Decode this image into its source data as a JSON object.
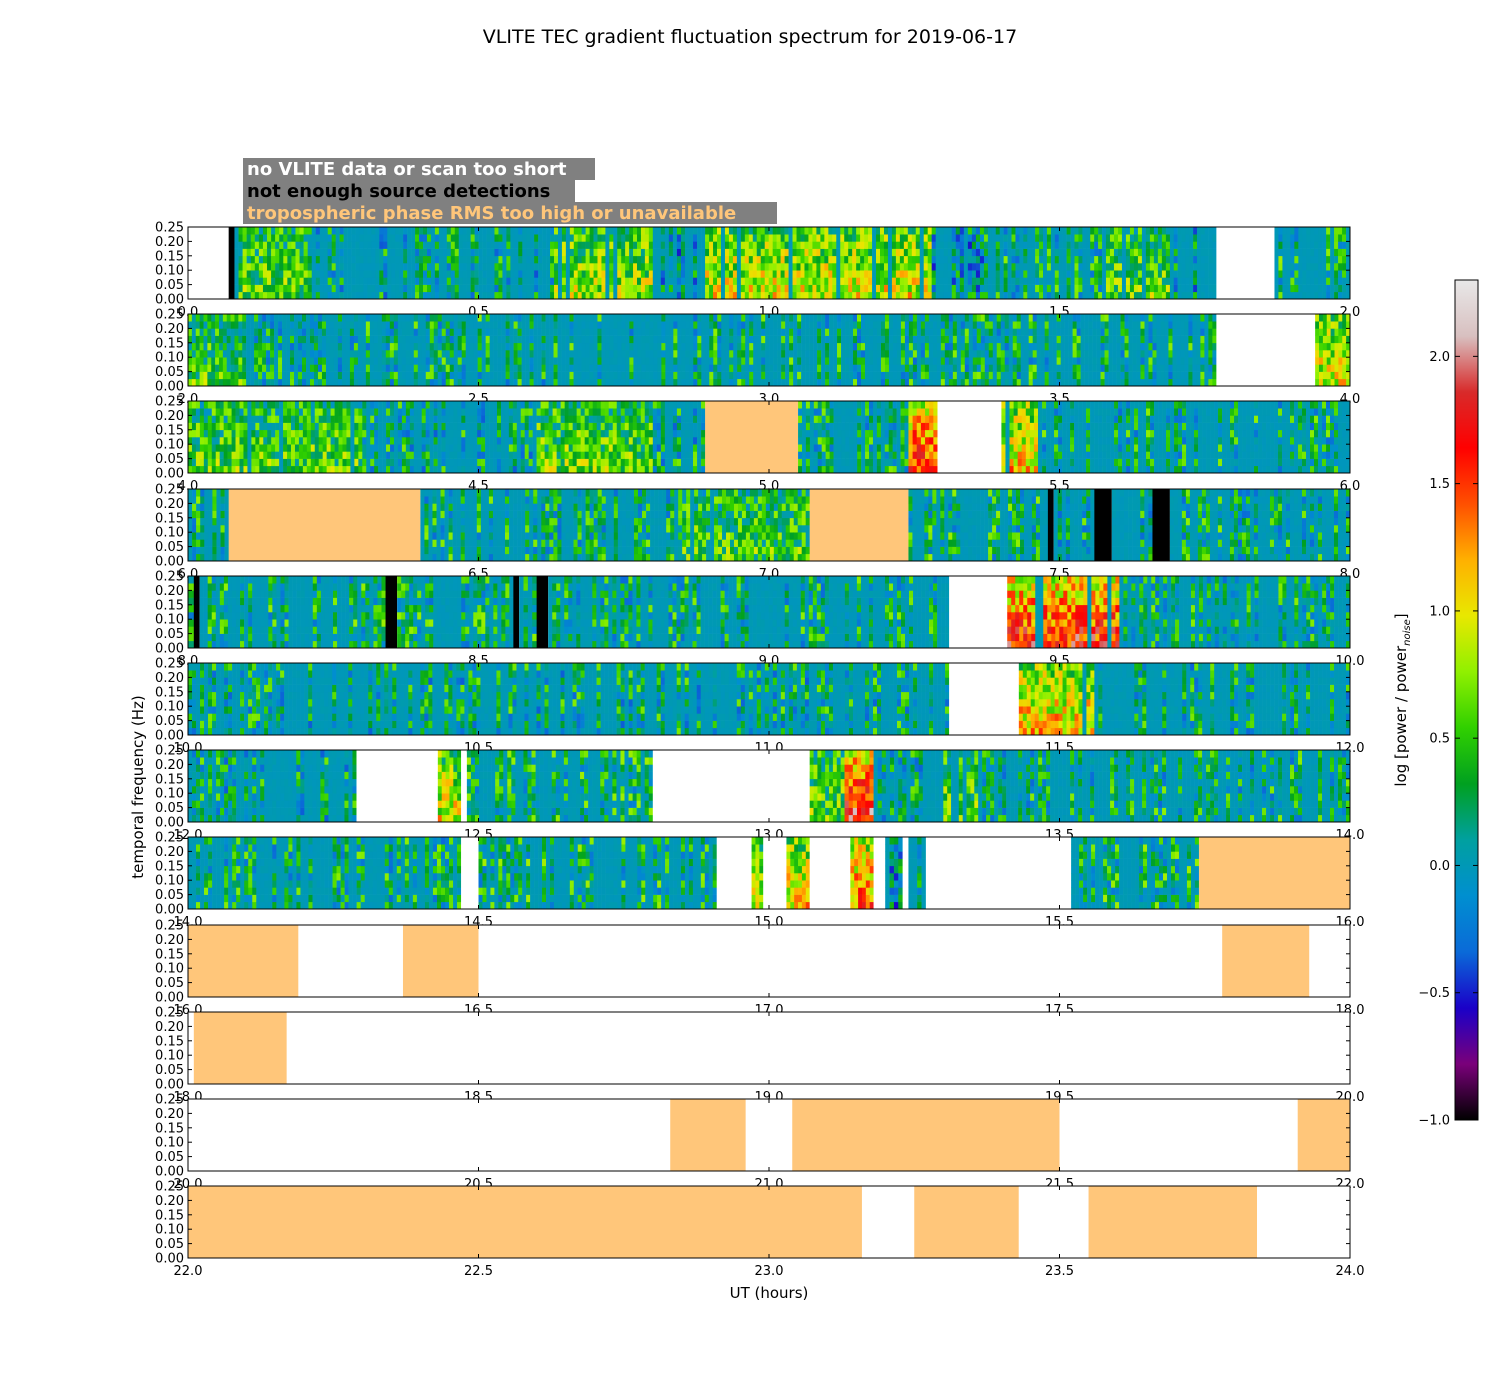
{
  "chart_data": {
    "type": "heatmap",
    "title": "VLITE TEC gradient fluctuation spectrum for 2019-06-17",
    "xlabel": "UT (hours)",
    "ylabel": "temporal frequency (Hz)",
    "ylim": [
      0,
      0.25
    ],
    "y_ticks": [
      "0.00",
      "0.05",
      "0.10",
      "0.15",
      "0.20",
      "0.25"
    ],
    "colorbar": {
      "label": "log [power / power",
      "label_sub": "noise",
      "label_end": "]",
      "range": [
        -1.0,
        2.3
      ],
      "ticks": [
        {
          "value": -1.0,
          "label": "−1.0"
        },
        {
          "value": -0.5,
          "label": "−0.5"
        },
        {
          "value": 0.0,
          "label": "0.0"
        },
        {
          "value": 0.5,
          "label": "0.5"
        },
        {
          "value": 1.0,
          "label": "1.0"
        },
        {
          "value": 1.5,
          "label": "1.5"
        },
        {
          "value": 2.0,
          "label": "2.0"
        }
      ],
      "colors": [
        "#000000",
        "#7a007a",
        "#1a00c8",
        "#0a6ad8",
        "#008fd0",
        "#00a0a0",
        "#00a020",
        "#30d000",
        "#90f000",
        "#e8e800",
        "#ffb000",
        "#ff5000",
        "#ff0000",
        "#d82a2a",
        "#d8c0c0",
        "#e8e8e8"
      ]
    },
    "legend": [
      {
        "label": "no VLITE data or scan too short",
        "color": "#ffffff",
        "category": "nodata"
      },
      {
        "label": "not enough source detections",
        "color": "#000000",
        "category": "detect"
      },
      {
        "label": "tropospheric phase RMS too high or unavailable",
        "color": "#ffc67a",
        "category": "tropo"
      }
    ],
    "legend_box_color": "#808080",
    "panels": [
      {
        "start": 0.0,
        "end": 2.0,
        "x_ticks": [
          "0.0",
          "0.5",
          "1.0",
          "1.5",
          "2.0"
        ],
        "segments": [
          {
            "s": 0.0,
            "e": 0.07,
            "k": "nodata"
          },
          {
            "s": 0.07,
            "e": 0.08,
            "k": "detect"
          },
          {
            "s": 0.08,
            "e": 0.22,
            "k": "active",
            "lvl": 0.55
          },
          {
            "s": 0.22,
            "e": 0.63,
            "k": "quiet",
            "lvl": 0.25
          },
          {
            "s": 0.63,
            "e": 0.8,
            "k": "active",
            "lvl": 0.75
          },
          {
            "s": 0.8,
            "e": 0.89,
            "k": "quiet",
            "lvl": 0.05
          },
          {
            "s": 0.89,
            "e": 1.28,
            "k": "active",
            "lvl": 0.9
          },
          {
            "s": 1.28,
            "e": 1.37,
            "k": "quiet",
            "lvl": 0.05
          },
          {
            "s": 1.37,
            "e": 1.58,
            "k": "quiet",
            "lvl": 0.35
          },
          {
            "s": 1.58,
            "e": 1.69,
            "k": "active",
            "lvl": 0.6
          },
          {
            "s": 1.69,
            "e": 1.77,
            "k": "quiet",
            "lvl": 0.1
          },
          {
            "s": 1.77,
            "e": 1.87,
            "k": "nodata"
          },
          {
            "s": 1.87,
            "e": 2.0,
            "k": "quiet",
            "lvl": 0.45
          }
        ]
      },
      {
        "start": 2.0,
        "end": 4.0,
        "x_ticks": [
          "2.0",
          "2.5",
          "3.0",
          "3.5",
          "4.0"
        ],
        "segments": [
          {
            "s": 2.0,
            "e": 2.1,
            "k": "active",
            "lvl": 0.5
          },
          {
            "s": 2.1,
            "e": 3.77,
            "k": "quiet",
            "lvl": 0.35
          },
          {
            "s": 3.77,
            "e": 3.94,
            "k": "nodata"
          },
          {
            "s": 3.94,
            "e": 4.0,
            "k": "active",
            "lvl": 0.9
          }
        ]
      },
      {
        "start": 4.0,
        "end": 6.0,
        "x_ticks": [
          "4.0",
          "4.5",
          "5.0",
          "5.5",
          "6.0"
        ],
        "segments": [
          {
            "s": 4.0,
            "e": 4.3,
            "k": "active",
            "lvl": 0.55
          },
          {
            "s": 4.3,
            "e": 4.6,
            "k": "quiet",
            "lvl": 0.3
          },
          {
            "s": 4.6,
            "e": 4.8,
            "k": "active",
            "lvl": 0.6
          },
          {
            "s": 4.8,
            "e": 4.89,
            "k": "quiet",
            "lvl": 0.3
          },
          {
            "s": 4.89,
            "e": 5.05,
            "k": "tropo"
          },
          {
            "s": 5.05,
            "e": 5.24,
            "k": "quiet",
            "lvl": 0.35
          },
          {
            "s": 5.24,
            "e": 5.29,
            "k": "active",
            "lvl": 1.6
          },
          {
            "s": 5.29,
            "e": 5.4,
            "k": "nodata"
          },
          {
            "s": 5.4,
            "e": 5.47,
            "k": "active",
            "lvl": 1.1
          },
          {
            "s": 5.47,
            "e": 6.0,
            "k": "quiet",
            "lvl": 0.35
          }
        ]
      },
      {
        "start": 6.0,
        "end": 8.0,
        "x_ticks": [
          "6.0",
          "6.5",
          "7.0",
          "7.5",
          "8.0"
        ],
        "segments": [
          {
            "s": 6.0,
            "e": 6.07,
            "k": "quiet",
            "lvl": 0.4
          },
          {
            "s": 6.07,
            "e": 6.4,
            "k": "tropo"
          },
          {
            "s": 6.4,
            "e": 6.83,
            "k": "quiet",
            "lvl": 0.35
          },
          {
            "s": 6.83,
            "e": 7.07,
            "k": "active",
            "lvl": 0.5
          },
          {
            "s": 7.07,
            "e": 7.24,
            "k": "tropo"
          },
          {
            "s": 7.24,
            "e": 7.48,
            "k": "quiet",
            "lvl": 0.4
          },
          {
            "s": 7.48,
            "e": 7.49,
            "k": "detect"
          },
          {
            "s": 7.49,
            "e": 7.56,
            "k": "quiet",
            "lvl": 0.3
          },
          {
            "s": 7.56,
            "e": 7.59,
            "k": "detect"
          },
          {
            "s": 7.59,
            "e": 7.66,
            "k": "quiet",
            "lvl": 0.3
          },
          {
            "s": 7.66,
            "e": 7.69,
            "k": "detect"
          },
          {
            "s": 7.69,
            "e": 8.0,
            "k": "quiet",
            "lvl": 0.35
          }
        ]
      },
      {
        "start": 8.0,
        "end": 10.0,
        "x_ticks": [
          "8.0",
          "8.5",
          "9.0",
          "9.5",
          "10.0"
        ],
        "segments": [
          {
            "s": 8.0,
            "e": 8.01,
            "k": "quiet",
            "lvl": 0.4
          },
          {
            "s": 8.01,
            "e": 8.02,
            "k": "detect"
          },
          {
            "s": 8.02,
            "e": 8.34,
            "k": "quiet",
            "lvl": 0.4
          },
          {
            "s": 8.34,
            "e": 8.36,
            "k": "detect"
          },
          {
            "s": 8.36,
            "e": 8.56,
            "k": "quiet",
            "lvl": 0.4
          },
          {
            "s": 8.56,
            "e": 8.57,
            "k": "detect"
          },
          {
            "s": 8.57,
            "e": 8.6,
            "k": "quiet",
            "lvl": 0.4
          },
          {
            "s": 8.6,
            "e": 8.62,
            "k": "detect"
          },
          {
            "s": 8.62,
            "e": 9.31,
            "k": "quiet",
            "lvl": 0.35
          },
          {
            "s": 9.31,
            "e": 9.41,
            "k": "nodata"
          },
          {
            "s": 9.41,
            "e": 9.61,
            "k": "active",
            "lvl": 1.6
          },
          {
            "s": 9.61,
            "e": 10.0,
            "k": "quiet",
            "lvl": 0.35
          }
        ]
      },
      {
        "start": 10.0,
        "end": 12.0,
        "x_ticks": [
          "10.0",
          "10.5",
          "11.0",
          "11.5",
          "12.0"
        ],
        "segments": [
          {
            "s": 10.0,
            "e": 11.31,
            "k": "quiet",
            "lvl": 0.3
          },
          {
            "s": 11.31,
            "e": 11.43,
            "k": "nodata"
          },
          {
            "s": 11.43,
            "e": 11.56,
            "k": "active",
            "lvl": 1.1
          },
          {
            "s": 11.56,
            "e": 12.0,
            "k": "quiet",
            "lvl": 0.3
          }
        ]
      },
      {
        "start": 12.0,
        "end": 14.0,
        "x_ticks": [
          "12.0",
          "12.5",
          "13.0",
          "13.5",
          "14.0"
        ],
        "segments": [
          {
            "s": 12.0,
            "e": 12.29,
            "k": "quiet",
            "lvl": 0.3
          },
          {
            "s": 12.29,
            "e": 12.43,
            "k": "nodata"
          },
          {
            "s": 12.43,
            "e": 12.47,
            "k": "active",
            "lvl": 0.9
          },
          {
            "s": 12.47,
            "e": 12.48,
            "k": "nodata"
          },
          {
            "s": 12.48,
            "e": 12.8,
            "k": "quiet",
            "lvl": 0.45
          },
          {
            "s": 12.8,
            "e": 13.07,
            "k": "nodata"
          },
          {
            "s": 13.07,
            "e": 13.13,
            "k": "active",
            "lvl": 0.6
          },
          {
            "s": 13.13,
            "e": 13.18,
            "k": "active",
            "lvl": 1.7
          },
          {
            "s": 13.18,
            "e": 13.3,
            "k": "quiet",
            "lvl": 0.3
          },
          {
            "s": 13.3,
            "e": 13.36,
            "k": "active",
            "lvl": 0.6
          },
          {
            "s": 13.36,
            "e": 14.0,
            "k": "quiet",
            "lvl": 0.35
          }
        ]
      },
      {
        "start": 14.0,
        "end": 16.0,
        "x_ticks": [
          "14.0",
          "14.5",
          "15.0",
          "15.5",
          "16.0"
        ],
        "segments": [
          {
            "s": 14.0,
            "e": 14.47,
            "k": "quiet",
            "lvl": 0.35
          },
          {
            "s": 14.47,
            "e": 14.5,
            "k": "nodata"
          },
          {
            "s": 14.5,
            "e": 14.91,
            "k": "quiet",
            "lvl": 0.45
          },
          {
            "s": 14.91,
            "e": 14.97,
            "k": "nodata"
          },
          {
            "s": 14.97,
            "e": 14.99,
            "k": "active",
            "lvl": 0.8
          },
          {
            "s": 14.99,
            "e": 15.03,
            "k": "nodata"
          },
          {
            "s": 15.03,
            "e": 15.07,
            "k": "active",
            "lvl": 1.0
          },
          {
            "s": 15.07,
            "e": 15.14,
            "k": "nodata"
          },
          {
            "s": 15.14,
            "e": 15.18,
            "k": "active",
            "lvl": 1.3
          },
          {
            "s": 15.18,
            "e": 15.2,
            "k": "nodata"
          },
          {
            "s": 15.2,
            "e": 15.23,
            "k": "quiet",
            "lvl": 0.0
          },
          {
            "s": 15.23,
            "e": 15.24,
            "k": "nodata"
          },
          {
            "s": 15.24,
            "e": 15.27,
            "k": "quiet",
            "lvl": 0.2
          },
          {
            "s": 15.27,
            "e": 15.52,
            "k": "nodata"
          },
          {
            "s": 15.52,
            "e": 15.74,
            "k": "quiet",
            "lvl": 0.45
          },
          {
            "s": 15.74,
            "e": 16.0,
            "k": "tropo"
          }
        ]
      },
      {
        "start": 16.0,
        "end": 18.0,
        "x_ticks": [
          "16.0",
          "16.5",
          "17.0",
          "17.5",
          "18.0"
        ],
        "segments": [
          {
            "s": 16.0,
            "e": 16.19,
            "k": "tropo"
          },
          {
            "s": 16.19,
            "e": 16.37,
            "k": "nodata"
          },
          {
            "s": 16.37,
            "e": 16.5,
            "k": "tropo"
          },
          {
            "s": 16.5,
            "e": 17.78,
            "k": "nodata"
          },
          {
            "s": 17.78,
            "e": 17.93,
            "k": "tropo"
          },
          {
            "s": 17.93,
            "e": 18.0,
            "k": "nodata"
          }
        ]
      },
      {
        "start": 18.0,
        "end": 20.0,
        "x_ticks": [
          "18.0",
          "18.5",
          "19.0",
          "19.5",
          "20.0"
        ],
        "segments": [
          {
            "s": 18.0,
            "e": 18.01,
            "k": "nodata"
          },
          {
            "s": 18.01,
            "e": 18.17,
            "k": "tropo"
          },
          {
            "s": 18.17,
            "e": 20.0,
            "k": "nodata"
          }
        ]
      },
      {
        "start": 20.0,
        "end": 22.0,
        "x_ticks": [
          "20.0",
          "20.5",
          "21.0",
          "21.5",
          "22.0"
        ],
        "segments": [
          {
            "s": 20.0,
            "e": 20.83,
            "k": "nodata"
          },
          {
            "s": 20.83,
            "e": 20.96,
            "k": "tropo"
          },
          {
            "s": 20.96,
            "e": 21.04,
            "k": "nodata"
          },
          {
            "s": 21.04,
            "e": 21.5,
            "k": "tropo"
          },
          {
            "s": 21.5,
            "e": 21.91,
            "k": "nodata"
          },
          {
            "s": 21.91,
            "e": 22.0,
            "k": "tropo"
          }
        ]
      },
      {
        "start": 22.0,
        "end": 24.0,
        "x_ticks": [
          "22.0",
          "22.5",
          "23.0",
          "23.5",
          "24.0"
        ],
        "segments": [
          {
            "s": 22.0,
            "e": 23.16,
            "k": "tropo"
          },
          {
            "s": 23.16,
            "e": 23.25,
            "k": "nodata"
          },
          {
            "s": 23.25,
            "e": 23.43,
            "k": "tropo"
          },
          {
            "s": 23.43,
            "e": 23.55,
            "k": "nodata"
          },
          {
            "s": 23.55,
            "e": 23.84,
            "k": "tropo"
          },
          {
            "s": 23.84,
            "e": 24.0,
            "k": "nodata"
          }
        ]
      }
    ]
  }
}
